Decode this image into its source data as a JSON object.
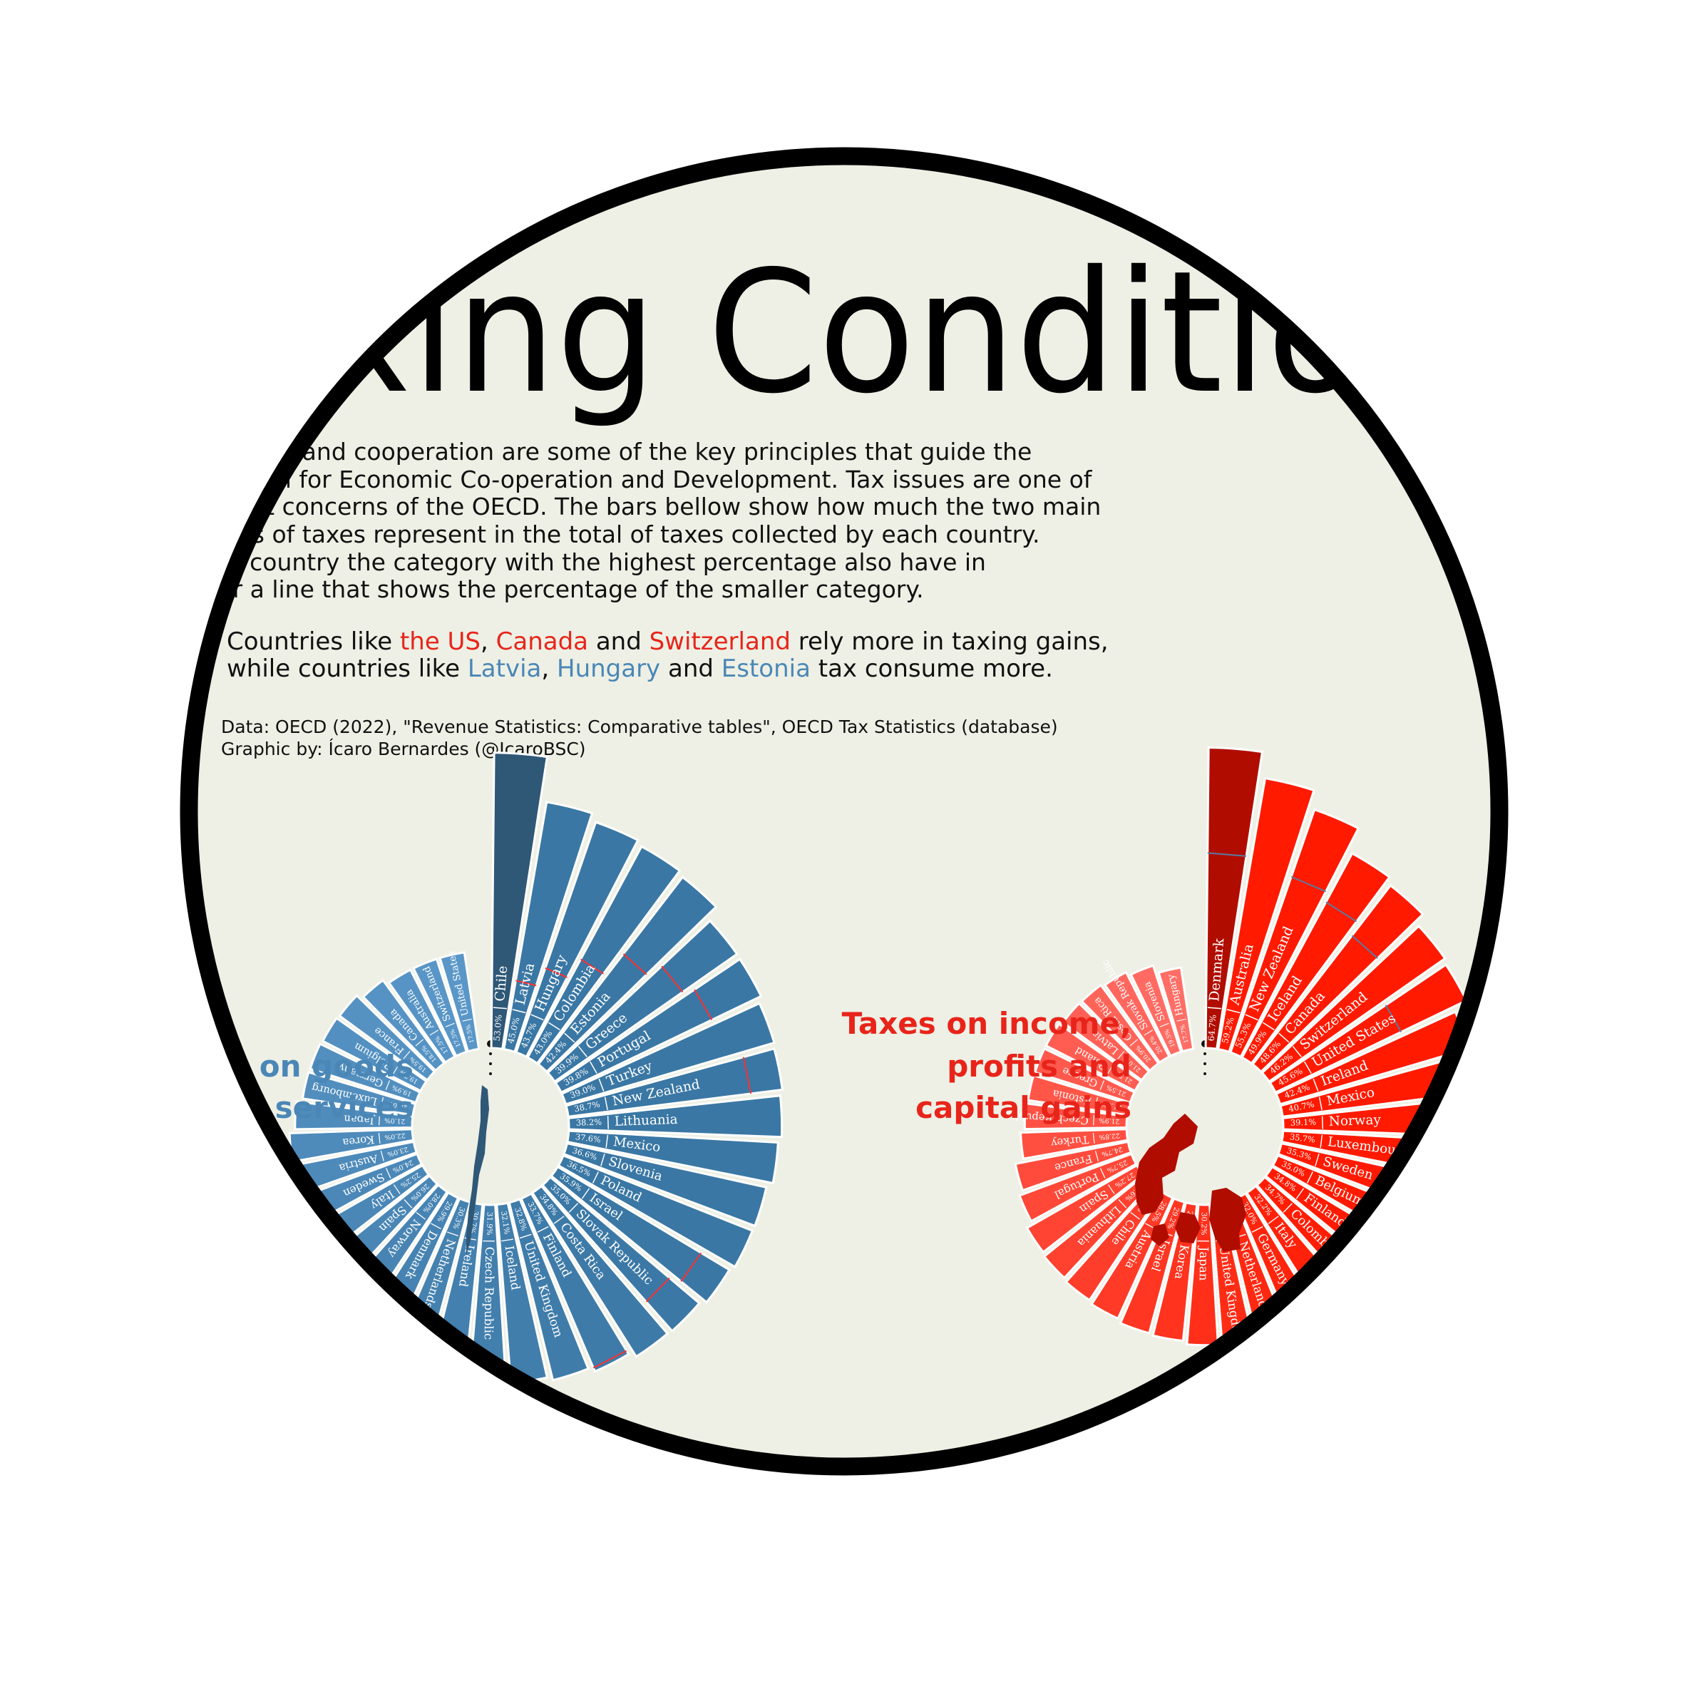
{
  "title": "Taxing Conditions",
  "intro_lines": [
    "Globalization and cooperation are some of the key principles that guide the",
    "Organisation for Economic Co-operation and Development. Tax issues are one of",
    "the biggest concerns of the OECD. The bars bellow show how much the two main",
    "categories of taxes represent in the total of taxes collected by each country.",
    "For each country the category with the highest percentage also have in",
    "their bar a line that shows the percentage of the smaller category."
  ],
  "highlight": {
    "line1_prefix": "Countries like ",
    "red_1": "the US",
    "sep_1": ", ",
    "red_2": "Canada",
    "sep_2": " and ",
    "red_3": "Switzerland",
    "line1_suffix": " rely more in taxing gains,",
    "line2_prefix": "while countries like ",
    "blue_1": "Latvia",
    "sep_3": ", ",
    "blue_2": "Hungary",
    "sep_4": " and ",
    "blue_3": "Estonia",
    "line2_suffix": " tax consume more."
  },
  "source_line": "Data: OECD (2022), \"Revenue Statistics: Comparative tables\", OECD Tax Statistics (database)",
  "credit_line": "Graphic by: Ícaro Bernardes (@IcaroBSC)",
  "colors": {
    "background": "#eef0e5",
    "frame": "#000000",
    "blue_dark": "#2f5877",
    "blue": "#3a77a4",
    "blue_light": "#5a97c8",
    "red_dark": "#b00d00",
    "red": "#ff1a00",
    "red_light": "#ff6e66",
    "marker_red": "#ff3030",
    "marker_blue": "#5a7aa0"
  },
  "chart_data": [
    {
      "type": "bar",
      "layout": "radial",
      "title": "Taxes on goods and services",
      "title_lines": [
        "Taxes on goods",
        "and services"
      ],
      "unit": "%",
      "categories": [
        "Chile",
        "Latvia",
        "Hungary",
        "Colombia",
        "Estonia",
        "Greece",
        "Portugal",
        "Turkey",
        "New Zealand",
        "Lithuania",
        "Mexico",
        "Slovenia",
        "Poland",
        "Israel",
        "Slovak Republic",
        "Costa Rica",
        "Finland",
        "United Kingdom",
        "Iceland",
        "Czech Republic",
        "Ireland",
        "Netherlands",
        "Denmark",
        "Norway",
        "Spain",
        "Italy",
        "Sweden",
        "Austria",
        "Korea",
        "Japan",
        "Luxembourg",
        "Germany",
        "Belgium",
        "France",
        "Canada",
        "Australia",
        "Switzerland",
        "United States"
      ],
      "values": [
        53.0,
        45.0,
        43.7,
        43.0,
        42.4,
        39.9,
        39.8,
        39.0,
        38.7,
        38.2,
        37.6,
        36.6,
        36.5,
        35.9,
        35.0,
        34.8,
        33.7,
        32.8,
        32.1,
        31.9,
        30.7,
        30.3,
        29.9,
        28.0,
        26.0,
        25.2,
        24.0,
        23.0,
        22.0,
        21.0,
        20.0,
        19.9,
        19.7,
        19.5,
        18.5,
        17.5,
        17.5,
        17.5
      ],
      "labels_visible": [
        "53.0%",
        "45.0%",
        "43.7%",
        "43.0%",
        "42.4%",
        "39.9%",
        "39.8%",
        "39.0%",
        "38.7%",
        "38.2%",
        "37.6%",
        "36.6%",
        "36.5%",
        "35.9%",
        "35.0%",
        "34.8%",
        "33.7%",
        "32.8%",
        "32.1%",
        "31.9%",
        "30.7%",
        "30.3%",
        "29.9%"
      ],
      "tail_labels": [
        "19.9%",
        "19.7%",
        "17.5%"
      ],
      "max_country_icon": "chile-map-icon"
    },
    {
      "type": "bar",
      "layout": "radial",
      "title": "Taxes on income, profits and capital gains",
      "title_lines": [
        "Taxes on income,",
        "profits and",
        "capital gains"
      ],
      "unit": "%",
      "categories": [
        "Denmark",
        "Australia",
        "New Zealand",
        "Iceland",
        "Canada",
        "Switzerland",
        "United States",
        "Ireland",
        "Mexico",
        "Norway",
        "Luxembourg",
        "Sweden",
        "Belgium",
        "Finland",
        "Colombia",
        "Italy",
        "Germany",
        "Netherlands",
        "United Kingdom",
        "Japan",
        "Korea",
        "Israel",
        "Austria",
        "Chile",
        "Lithuania",
        "Spain",
        "Portugal",
        "France",
        "Turkey",
        "Czech Republic",
        "Estonia",
        "Greece",
        "Poland",
        "Latvia",
        "Costa Rica",
        "Slovak Republic",
        "Slovenia",
        "Hungary"
      ],
      "values": [
        64.7,
        59.2,
        55.3,
        49.9,
        48.6,
        46.2,
        45.6,
        42.4,
        40.7,
        39.1,
        35.7,
        35.3,
        35.0,
        34.8,
        34.7,
        32.2,
        32.0,
        31.5,
        31.0,
        30.2,
        29.5,
        29.2,
        28.5,
        28.0,
        27.6,
        27.2,
        25.7,
        24.7,
        22.8,
        21.9,
        21.6,
        21.5,
        21.5,
        21.0,
        20.9,
        20.4,
        19.5,
        17.7
      ],
      "labels_visible": [
        "64.7%",
        "59.2%",
        "55.3%",
        "49.9%",
        "48.6%",
        "46.2%",
        "45.6%",
        "42.4%",
        "40.7%",
        "39.1%",
        "35.7%",
        "35.3%",
        "35.0%",
        "34.8%",
        "34.7%",
        "32.2%"
      ],
      "tail_labels": [
        "29.2%",
        "28.0%",
        "27.2%",
        "25.7%",
        "24.7%",
        "22.8%",
        "21.9%",
        "21.6%",
        "21.5%",
        "21.5%",
        "21.0%",
        "20.9%",
        "20.4%",
        "19.5%",
        "17.7%"
      ],
      "max_country_icon": "denmark-map-icon"
    }
  ]
}
